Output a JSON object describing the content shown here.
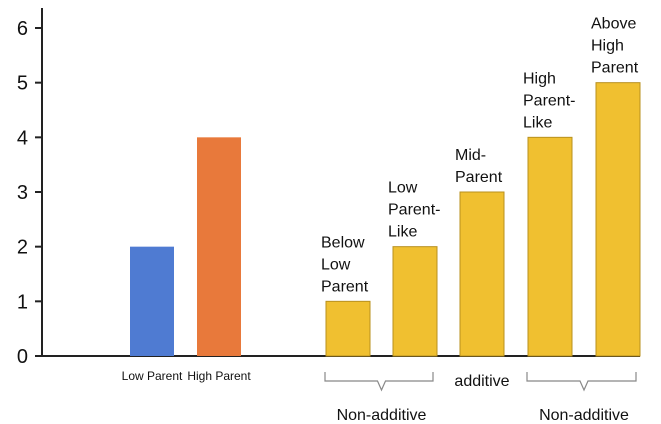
{
  "chart_data": {
    "type": "bar",
    "ylim": [
      0,
      6
    ],
    "yticks": [
      "0",
      "1",
      "2",
      "3",
      "4",
      "5",
      "6"
    ],
    "grid": false,
    "categories": [
      "Low Parent",
      "High Parent",
      "",
      "",
      "",
      "",
      ""
    ],
    "bars": [
      {
        "value": 2,
        "color": "#4F7BD2",
        "category": "Low Parent",
        "label_lines": []
      },
      {
        "value": 4,
        "color": "#E8793B",
        "category": "High Parent",
        "label_lines": []
      },
      {
        "value": 1,
        "color": "#F0C030",
        "category": "",
        "label_lines": [
          "Below",
          "Low",
          "Parent"
        ]
      },
      {
        "value": 2,
        "color": "#F0C030",
        "category": "",
        "label_lines": [
          "Low",
          "Parent-",
          "Like"
        ]
      },
      {
        "value": 3,
        "color": "#F0C030",
        "category": "",
        "label_lines": [
          "Mid-",
          "Parent"
        ]
      },
      {
        "value": 4,
        "color": "#F0C030",
        "category": "",
        "label_lines": [
          "High",
          "Parent-",
          "Like"
        ]
      },
      {
        "value": 5,
        "color": "#F0C030",
        "category": "",
        "label_lines": [
          "Above",
          "High",
          "Parent"
        ]
      }
    ],
    "groups": [
      {
        "label": "Non-additive",
        "bars": [
          2,
          3
        ],
        "bracket": true
      },
      {
        "label": "additive",
        "bars": [
          4
        ],
        "bracket": false
      },
      {
        "label": "Non-additive",
        "bars": [
          5,
          6
        ],
        "bracket": true
      }
    ],
    "colors": {
      "axis": "#222222",
      "bar_edge": "#B8901E",
      "bracket": "#888888"
    }
  }
}
